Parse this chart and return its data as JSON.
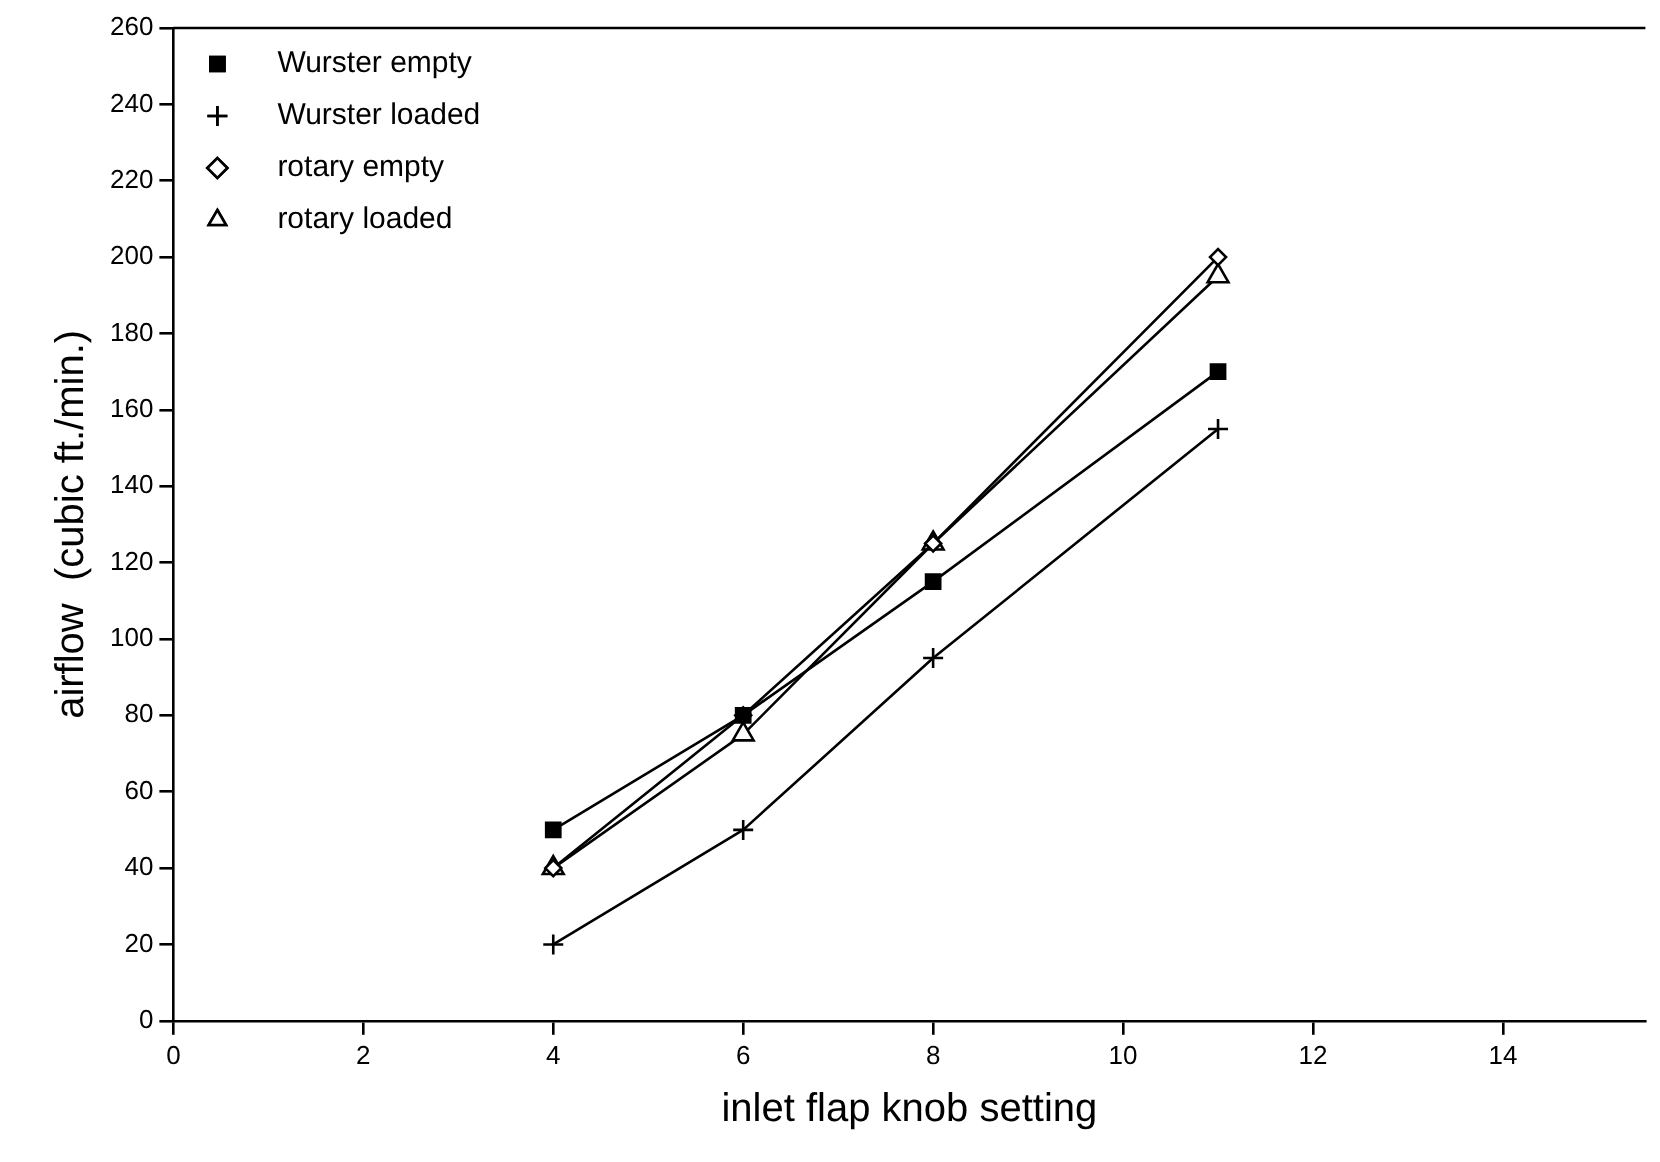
{
  "chart_data": {
    "type": "line",
    "xlabel": "inlet flap knob setting",
    "ylabel": "airflow  (cubic ft./min.)",
    "x": [
      4,
      6,
      8,
      11
    ],
    "series": [
      {
        "name": "Wurster empty",
        "color": "#000000",
        "marker": "square",
        "values": [
          50,
          80,
          115,
          170
        ]
      },
      {
        "name": "Wurster loaded",
        "color": "#000000",
        "marker": "cross",
        "values": [
          20,
          50,
          95,
          155
        ]
      },
      {
        "name": "rotary empty",
        "color": "#000000",
        "marker": "diamond",
        "values": [
          40,
          80,
          125,
          200
        ]
      },
      {
        "name": "rotary loaded",
        "color": "#000000",
        "marker": "triangle",
        "values": [
          40,
          75,
          125,
          195
        ]
      }
    ],
    "xlim": [
      0,
      15.5
    ],
    "xticks": [
      0,
      2,
      4,
      6,
      8,
      10,
      12,
      14
    ],
    "ylim": [
      0,
      260
    ],
    "yticks": [
      0,
      20,
      40,
      60,
      80,
      100,
      120,
      140,
      160,
      180,
      200,
      220,
      240,
      260
    ],
    "grid": false,
    "legend": "top left",
    "line_style": "solid"
  }
}
